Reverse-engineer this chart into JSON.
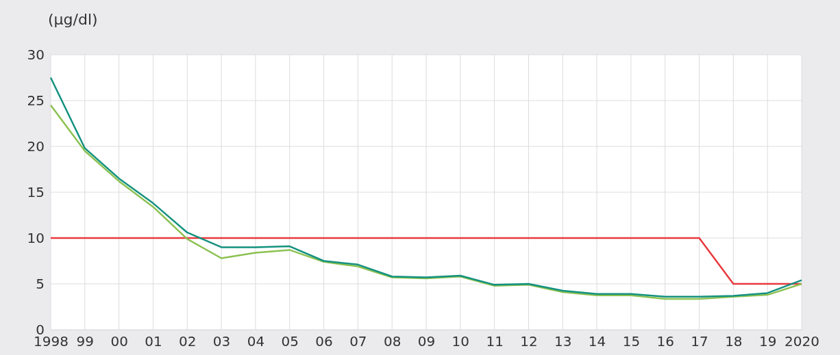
{
  "chart_data": {
    "type": "line",
    "ylabel": "(µg/dl)",
    "categories": [
      "1998",
      "99",
      "00",
      "01",
      "02",
      "03",
      "04",
      "05",
      "06",
      "07",
      "08",
      "09",
      "10",
      "11",
      "12",
      "13",
      "14",
      "15",
      "16",
      "17",
      "18",
      "19",
      "2020"
    ],
    "series": [
      {
        "color": "#e8383d",
        "values": [
          10,
          10,
          10,
          10,
          10,
          10,
          10,
          10,
          10,
          10,
          10,
          10,
          10,
          10,
          10,
          10,
          10,
          10,
          10,
          10,
          5,
          5,
          5
        ]
      },
      {
        "color": "#8cc152",
        "values": [
          24.5,
          19.5,
          16.2,
          13.4,
          9.9,
          7.8,
          8.4,
          8.7,
          7.4,
          6.9,
          5.7,
          5.6,
          5.8,
          4.8,
          4.9,
          4.1,
          3.75,
          3.75,
          3.35,
          3.35,
          3.6,
          3.8,
          5.0
        ]
      },
      {
        "color": "#13917f",
        "values": [
          27.5,
          19.8,
          16.5,
          13.8,
          10.6,
          9.0,
          9.0,
          9.1,
          7.5,
          7.1,
          5.8,
          5.7,
          5.9,
          4.9,
          5.0,
          4.25,
          3.9,
          3.9,
          3.6,
          3.6,
          3.7,
          4.0,
          5.4
        ]
      }
    ],
    "ylim": [
      0,
      30
    ],
    "yticks": [
      0,
      5,
      10,
      15,
      20,
      25,
      30
    ],
    "grid": true,
    "marker": "none",
    "line_style": "solid"
  }
}
